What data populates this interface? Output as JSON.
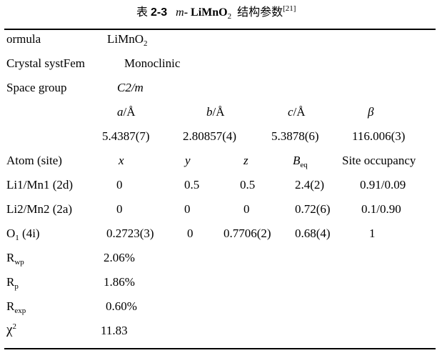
{
  "caption": {
    "prefix": "表",
    "number": "2-3",
    "compound_italic": "m",
    "compound_rest": "- LiMnO",
    "compound_sub": "2",
    "title_suffix": "结构参数",
    "ref": "[21]"
  },
  "table": {
    "formula": {
      "label": "ormula",
      "value": "LiMnO",
      "value_sub": "2"
    },
    "crystal_system": {
      "label": "Crystal systFem",
      "value": "Monoclinic"
    },
    "space_group": {
      "label": "Space group",
      "value": "C2/m"
    },
    "lattice_headers": [
      {
        "var": "a",
        "unit": "/Å"
      },
      {
        "var": "b",
        "unit": "/Å"
      },
      {
        "var": "c",
        "unit": "/Å"
      },
      {
        "var": "β",
        "unit": ""
      }
    ],
    "lattice_values": [
      "5.4387(7)",
      "2.80857(4)",
      "5.3878(6)",
      "116.006(3)"
    ],
    "atom_headers": {
      "site": "Atom (site)",
      "x": "x",
      "y": "y",
      "z": "z",
      "beq": "B",
      "beq_sub": "eq",
      "occ": "Site occupancy"
    },
    "atoms": [
      {
        "site": "Li1/Mn1 (2d)",
        "site_sub": "",
        "site_tail": "",
        "x": "0",
        "y": "0.5",
        "z": "0.5",
        "beq": "2.4(2)",
        "occ": "0.91/0.09"
      },
      {
        "site": "Li2/Mn2 (2a)",
        "site_sub": "",
        "site_tail": "",
        "x": "0",
        "y": "0",
        "z": "0",
        "beq": "0.72(6)",
        "occ": "0.1/0.90"
      },
      {
        "site": "O",
        "site_sub": "1",
        "site_tail": " (4i)",
        "x": "0.2723(3)",
        "y": "0",
        "z": "0.7706(2)",
        "beq": "0.68(4)",
        "occ": "1"
      }
    ],
    "stats": [
      {
        "sym": "R",
        "sub": "wp",
        "sup": "",
        "value": "2.06%"
      },
      {
        "sym": "R",
        "sub": "p",
        "sup": "",
        "value": "1.86%"
      },
      {
        "sym": "R",
        "sub": "exp",
        "sup": "",
        "value": "0.60%"
      },
      {
        "sym": "χ",
        "sub": "",
        "sup": "2",
        "value": "11.83"
      }
    ]
  }
}
